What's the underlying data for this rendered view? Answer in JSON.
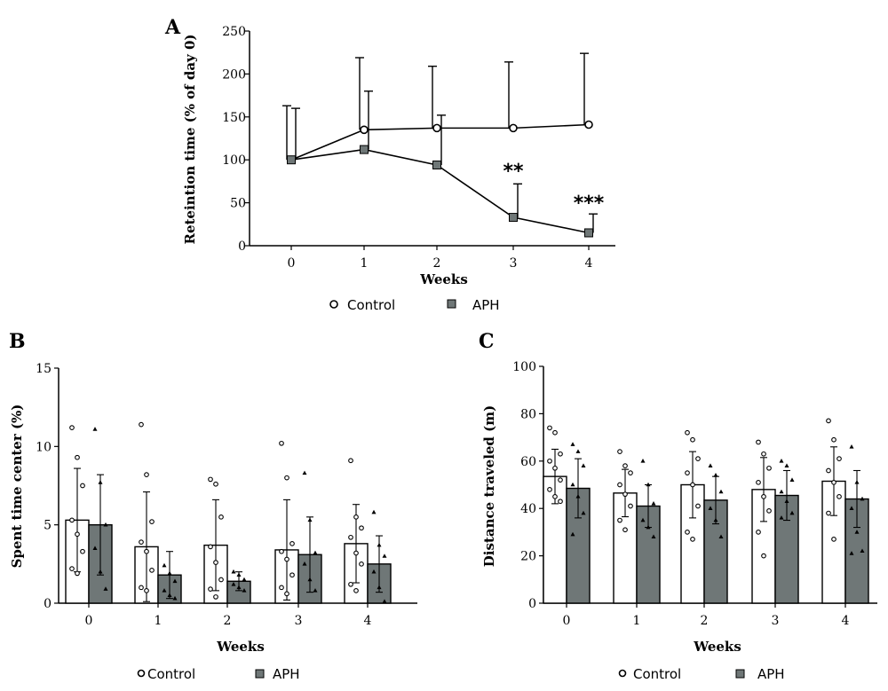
{
  "colors": {
    "control_fill": "#ffffff",
    "aph_fill": "#6f7777",
    "line": "#000000"
  },
  "chart_data": [
    {
      "panel": "A",
      "type": "line",
      "xlabel": "Weeks",
      "ylabel": "Reteintion time (% of day 0)",
      "x": [
        0,
        1,
        2,
        3,
        4
      ],
      "xtick_labels": [
        "0",
        "1",
        "2",
        "3",
        "4"
      ],
      "yticks": [
        0,
        50,
        100,
        150,
        200,
        250
      ],
      "ylim": [
        0,
        250
      ],
      "series": [
        {
          "name": "Control",
          "marker": "open-circle",
          "values": [
            100,
            135,
            137,
            137,
            141
          ],
          "error": [
            63,
            84,
            72,
            77,
            83
          ]
        },
        {
          "name": "APH",
          "marker": "filled-square",
          "values": [
            100,
            112,
            94,
            33,
            15
          ],
          "error": [
            60,
            68,
            58,
            39,
            22
          ]
        }
      ],
      "annotations": [
        {
          "x": 3,
          "text": "**"
        },
        {
          "x": 4,
          "text": "***"
        }
      ],
      "legend": [
        "Control",
        "APH"
      ]
    },
    {
      "panel": "B",
      "type": "bar",
      "xlabel": "Weeks",
      "ylabel": "Spent time center (%)",
      "categories": [
        "0",
        "1",
        "2",
        "3",
        "4"
      ],
      "yticks": [
        0,
        5,
        10,
        15
      ],
      "ylim": [
        0,
        15
      ],
      "series": [
        {
          "name": "Control",
          "values": [
            5.3,
            3.6,
            3.7,
            3.4,
            3.8
          ],
          "error": [
            3.3,
            3.5,
            2.9,
            3.2,
            2.5
          ],
          "points": [
            [
              11.2,
              9.3,
              7.5,
              5.3,
              4.4,
              3.3,
              2.2,
              1.9
            ],
            [
              11.4,
              8.2,
              5.2,
              3.9,
              3.3,
              2.1,
              1.0,
              0.8
            ],
            [
              7.9,
              7.6,
              5.5,
              3.6,
              2.6,
              1.5,
              0.9,
              0.4
            ],
            [
              10.2,
              8.0,
              3.8,
              3.3,
              2.8,
              1.8,
              1.0,
              0.6
            ],
            [
              9.1,
              5.5,
              4.8,
              4.2,
              3.2,
              2.5,
              1.2,
              0.8
            ]
          ]
        },
        {
          "name": "APH",
          "values": [
            5.0,
            1.8,
            1.4,
            3.1,
            2.5
          ],
          "error": [
            3.2,
            1.5,
            0.6,
            2.4,
            1.8
          ],
          "points": [
            [
              11.1,
              7.7,
              5.0,
              3.5,
              2.0,
              0.9
            ],
            [
              2.4,
              1.9,
              1.4,
              0.8,
              0.5,
              0.3
            ],
            [
              2.0,
              1.8,
              1.5,
              1.2,
              1.0,
              0.8
            ],
            [
              8.3,
              5.3,
              3.2,
              2.5,
              1.5,
              0.8
            ],
            [
              5.8,
              3.7,
              3.0,
              2.0,
              1.0,
              0.1
            ]
          ]
        }
      ],
      "legend": [
        "Control",
        "APH"
      ]
    },
    {
      "panel": "C",
      "type": "bar",
      "xlabel": "Weeks",
      "ylabel": "Distance traveled (m)",
      "categories": [
        "0",
        "1",
        "2",
        "3",
        "4"
      ],
      "yticks": [
        0,
        20,
        40,
        60,
        80,
        100
      ],
      "ylim": [
        0,
        100
      ],
      "series": [
        {
          "name": "Control",
          "values": [
            53.5,
            46.5,
            50.0,
            48.0,
            51.5
          ],
          "error": [
            11.5,
            10.0,
            14.0,
            13.5,
            14.5
          ],
          "points": [
            [
              74,
              72,
              63,
              60,
              57,
              52,
              48,
              45,
              43
            ],
            [
              64,
              58,
              55,
              50,
              46,
              41,
              35,
              31
            ],
            [
              72,
              69,
              61,
              55,
              50,
              41,
              30,
              27
            ],
            [
              68,
              63,
              57,
              51,
              45,
              39,
              30,
              20
            ],
            [
              77,
              69,
              61,
              56,
              51,
              45,
              38,
              27
            ]
          ]
        },
        {
          "name": "APH",
          "values": [
            48.5,
            41.0,
            43.5,
            45.5,
            44.0
          ],
          "error": [
            12.5,
            9.0,
            10.0,
            10.5,
            12.0
          ],
          "points": [
            [
              67,
              64,
              58,
              50,
              45,
              38,
              29
            ],
            [
              60,
              50,
              42,
              35,
              32,
              28
            ],
            [
              58,
              54,
              47,
              40,
              35,
              28
            ],
            [
              60,
              58,
              52,
              47,
              43,
              38,
              36
            ],
            [
              66,
              51,
              44,
              40,
              30,
              22,
              21
            ]
          ]
        }
      ],
      "legend": [
        "Control",
        "APH"
      ]
    }
  ]
}
